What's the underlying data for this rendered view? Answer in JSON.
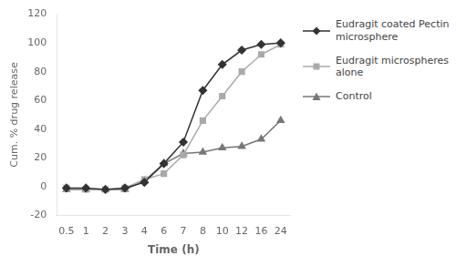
{
  "chart_data": {
    "type": "line",
    "categories": [
      "0.5",
      "1",
      "2",
      "3",
      "4",
      "6",
      "7",
      "8",
      "10",
      "12",
      "16",
      "24"
    ],
    "series": [
      {
        "name": "Eudragit coated Pectin\nmicrosphere",
        "color": "#333333",
        "marker": "diamond",
        "values": [
          -1,
          -1,
          -2,
          -1,
          3,
          16,
          31,
          67,
          85,
          95,
          99,
          100
        ]
      },
      {
        "name": "Eudragit microspheres\nalone",
        "color": "#aaaaaa",
        "marker": "square",
        "values": [
          -1,
          -2,
          -2,
          -1,
          5,
          9,
          22,
          46,
          63,
          80,
          92,
          99
        ]
      },
      {
        "name": "Control",
        "color": "#777777",
        "marker": "triangle",
        "values": [
          -2,
          -2,
          -2,
          -2,
          4,
          16,
          23,
          24,
          27,
          28,
          33,
          46
        ]
      }
    ],
    "xlabel": "Time (h)",
    "ylabel": "Cum. % drug release",
    "ylim": [
      -20,
      120
    ],
    "yticks": [
      -20,
      0,
      20,
      40,
      60,
      80,
      100,
      120
    ],
    "grid": false,
    "legend": "right"
  }
}
